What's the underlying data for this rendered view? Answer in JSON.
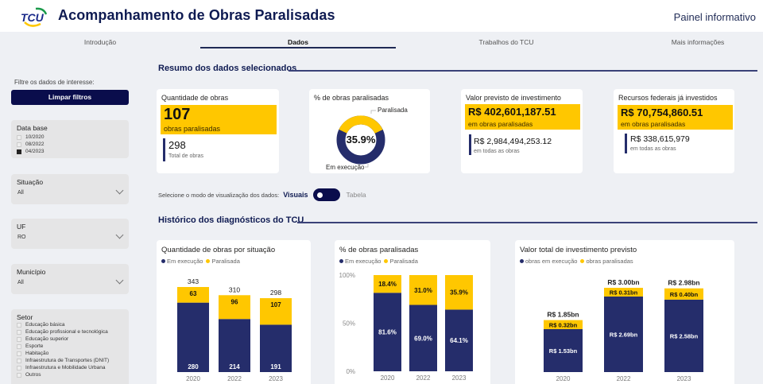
{
  "header": {
    "logo_text": "TCU",
    "title": "Acompanhamento de Obras Paralisadas",
    "subtitle": "Painel informativo"
  },
  "tabs": [
    {
      "label": "Introdução",
      "active": false
    },
    {
      "label": "Dados",
      "active": true
    },
    {
      "label": "Trabalhos do TCU",
      "active": false
    },
    {
      "label": "Mais informações",
      "active": false
    }
  ],
  "sidebar": {
    "filter_label": "Filtre os dados de interesse:",
    "clear_button": "Limpar filtros",
    "data_base": {
      "title": "Data base",
      "options": [
        {
          "label": "10/2020",
          "checked": false
        },
        {
          "label": "08/2022",
          "checked": false
        },
        {
          "label": "04/2023",
          "checked": true
        }
      ]
    },
    "situacao": {
      "title": "Situação",
      "value": "All"
    },
    "uf": {
      "title": "UF",
      "value": "RO"
    },
    "municipio": {
      "title": "Município",
      "value": "All"
    },
    "setor": {
      "title": "Setor",
      "options": [
        {
          "label": "Educação básica",
          "checked": false
        },
        {
          "label": "Educação profissional e tecnológica",
          "checked": false
        },
        {
          "label": "Educação superior",
          "checked": false
        },
        {
          "label": "Esporte",
          "checked": false
        },
        {
          "label": "Habitação",
          "checked": false
        },
        {
          "label": "Infraestrutura de Transportes (DNIT)",
          "checked": false
        },
        {
          "label": "Infraestrutura e Mobilidade Urbana",
          "checked": false
        },
        {
          "label": "Outros",
          "checked": false
        }
      ]
    }
  },
  "summary": {
    "section_title": "Resumo dos dados selecionados",
    "quantidade": {
      "title": "Quantidade de obras",
      "main_value": "107",
      "main_label": "obras paralisadas",
      "secondary_value": "298",
      "secondary_label": "Total de obras"
    },
    "percent": {
      "title": "% de obras paralisadas",
      "center_label": "35.9%",
      "label_paralisada": "Paralisada",
      "label_execucao": "Em execução",
      "paralisada_pct": 35.9
    },
    "valor_previsto": {
      "title": "Valor previsto de investimento",
      "main_value": "R$ 402,601,187.51",
      "main_label": "em obras paralisadas",
      "secondary_value": "R$ 2,984,494,253.12",
      "secondary_label": "em todas as obras"
    },
    "recursos": {
      "title": "Recursos federais já investidos",
      "main_value": "R$ 70,754,860.51",
      "main_label": "em obras paralisadas",
      "secondary_value": "R$ 338,615,979",
      "secondary_label": "em todas as obras"
    }
  },
  "view_mode": {
    "prompt": "Selecione o modo de visualização dos dados:",
    "option_visuais": "Visuais",
    "option_tabela": "Tabela",
    "selected": "Visuais"
  },
  "history": {
    "section_title": "Histórico dos diagnósticos do TCU"
  },
  "colors": {
    "navy": "#252d6b",
    "yellow": "#ffc700",
    "dark_button": "#0a0d4c",
    "title_blue": "#0f1b52"
  },
  "chart_data": [
    {
      "type": "bar",
      "stacked": true,
      "title": "Quantidade de obras por situação",
      "categories": [
        "2020",
        "2022",
        "2023"
      ],
      "series": [
        {
          "name": "Em execução",
          "values": [
            280,
            214,
            191
          ],
          "labels": [
            "280",
            "214",
            "191"
          ]
        },
        {
          "name": "Paralisada",
          "values": [
            63,
            96,
            107
          ],
          "labels": [
            "63",
            "96",
            "107"
          ]
        }
      ],
      "totals": [
        343,
        310,
        298
      ],
      "total_labels": [
        "343",
        "310",
        "298"
      ],
      "legend": "top-left",
      "ylim": [
        0,
        343
      ]
    },
    {
      "type": "bar",
      "stacked": true,
      "title": "% de obras paralisadas",
      "categories": [
        "2020",
        "2022",
        "2023"
      ],
      "series": [
        {
          "name": "Em execução",
          "values": [
            81.6,
            69.0,
            64.1
          ],
          "labels": [
            "81.6%",
            "69.0%",
            "64.1%"
          ]
        },
        {
          "name": "Paralisada",
          "values": [
            18.4,
            31.0,
            35.9
          ],
          "labels": [
            "18.4%",
            "31.0%",
            "35.9%"
          ]
        }
      ],
      "yticks": [
        "0%",
        "50%",
        "100%"
      ],
      "legend": "top-left",
      "ylim": [
        0,
        100
      ]
    },
    {
      "type": "bar",
      "stacked": true,
      "title": "Valor total de investimento previsto",
      "categories": [
        "2020",
        "2022",
        "2023"
      ],
      "series": [
        {
          "name": "obras em execução",
          "values": [
            1.53,
            2.69,
            2.58
          ],
          "labels": [
            "R$ 1.53bn",
            "R$ 2.69bn",
            "R$ 2.58bn"
          ]
        },
        {
          "name": "obras paralisadas",
          "values": [
            0.32,
            0.31,
            0.4
          ],
          "labels": [
            "R$ 0.32bn",
            "R$ 0.31bn",
            "R$ 0.40bn"
          ]
        }
      ],
      "totals": [
        1.85,
        3.0,
        2.98
      ],
      "total_labels": [
        "R$ 1.85bn",
        "R$ 3.00bn",
        "R$ 2.98bn"
      ],
      "unit": "R$ bn",
      "legend": "top-left",
      "ylim": [
        0,
        3.0
      ]
    }
  ]
}
